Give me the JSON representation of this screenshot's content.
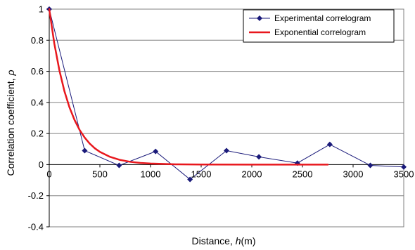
{
  "chart_data": {
    "type": "line",
    "xlabel_prefix": "Distance, ",
    "xlabel_var": "h",
    "xlabel_suffix": "(m)",
    "ylabel_prefix": "Correlation coefficient, ",
    "ylabel_var": "ρ",
    "xlim": [
      0,
      3500
    ],
    "ylim": [
      -0.4,
      1
    ],
    "x_ticks": [
      0,
      500,
      1000,
      1500,
      2000,
      2500,
      3000,
      3500
    ],
    "x_tick_labels": [
      "0",
      "500",
      "1000",
      "1500",
      "2000",
      "2500",
      "3000",
      "3500"
    ],
    "y_ticks": [
      -0.4,
      -0.2,
      0,
      0.2,
      0.4,
      0.6,
      0.8,
      1
    ],
    "y_tick_labels": [
      "-0.4",
      "-0.2",
      "0",
      "0.2",
      "0.4",
      "0.6",
      "0.8",
      "1"
    ],
    "legend_position": "top-right",
    "series": [
      {
        "name": "Experimental correlogram",
        "color": "#1a1a7a",
        "marker": "diamond",
        "x": [
          0,
          350,
          690,
          1050,
          1390,
          1750,
          2070,
          2450,
          2770,
          3170,
          3500
        ],
        "y": [
          1.0,
          0.09,
          -0.005,
          0.085,
          -0.095,
          0.09,
          0.05,
          0.01,
          0.13,
          -0.005,
          -0.015
        ]
      },
      {
        "name": "Exponential correlogram",
        "color": "#e8171d",
        "marker": "none",
        "x": [
          0,
          50,
          100,
          150,
          200,
          250,
          300,
          350,
          400,
          450,
          500,
          600,
          700,
          800,
          900,
          1000,
          1250,
          1500,
          2000,
          2500,
          2750
        ],
        "y": [
          1.0,
          0.779,
          0.607,
          0.472,
          0.368,
          0.287,
          0.223,
          0.174,
          0.135,
          0.105,
          0.082,
          0.05,
          0.03,
          0.018,
          0.011,
          0.007,
          0.002,
          0.001,
          0.0,
          0.0,
          0.0
        ]
      }
    ]
  }
}
